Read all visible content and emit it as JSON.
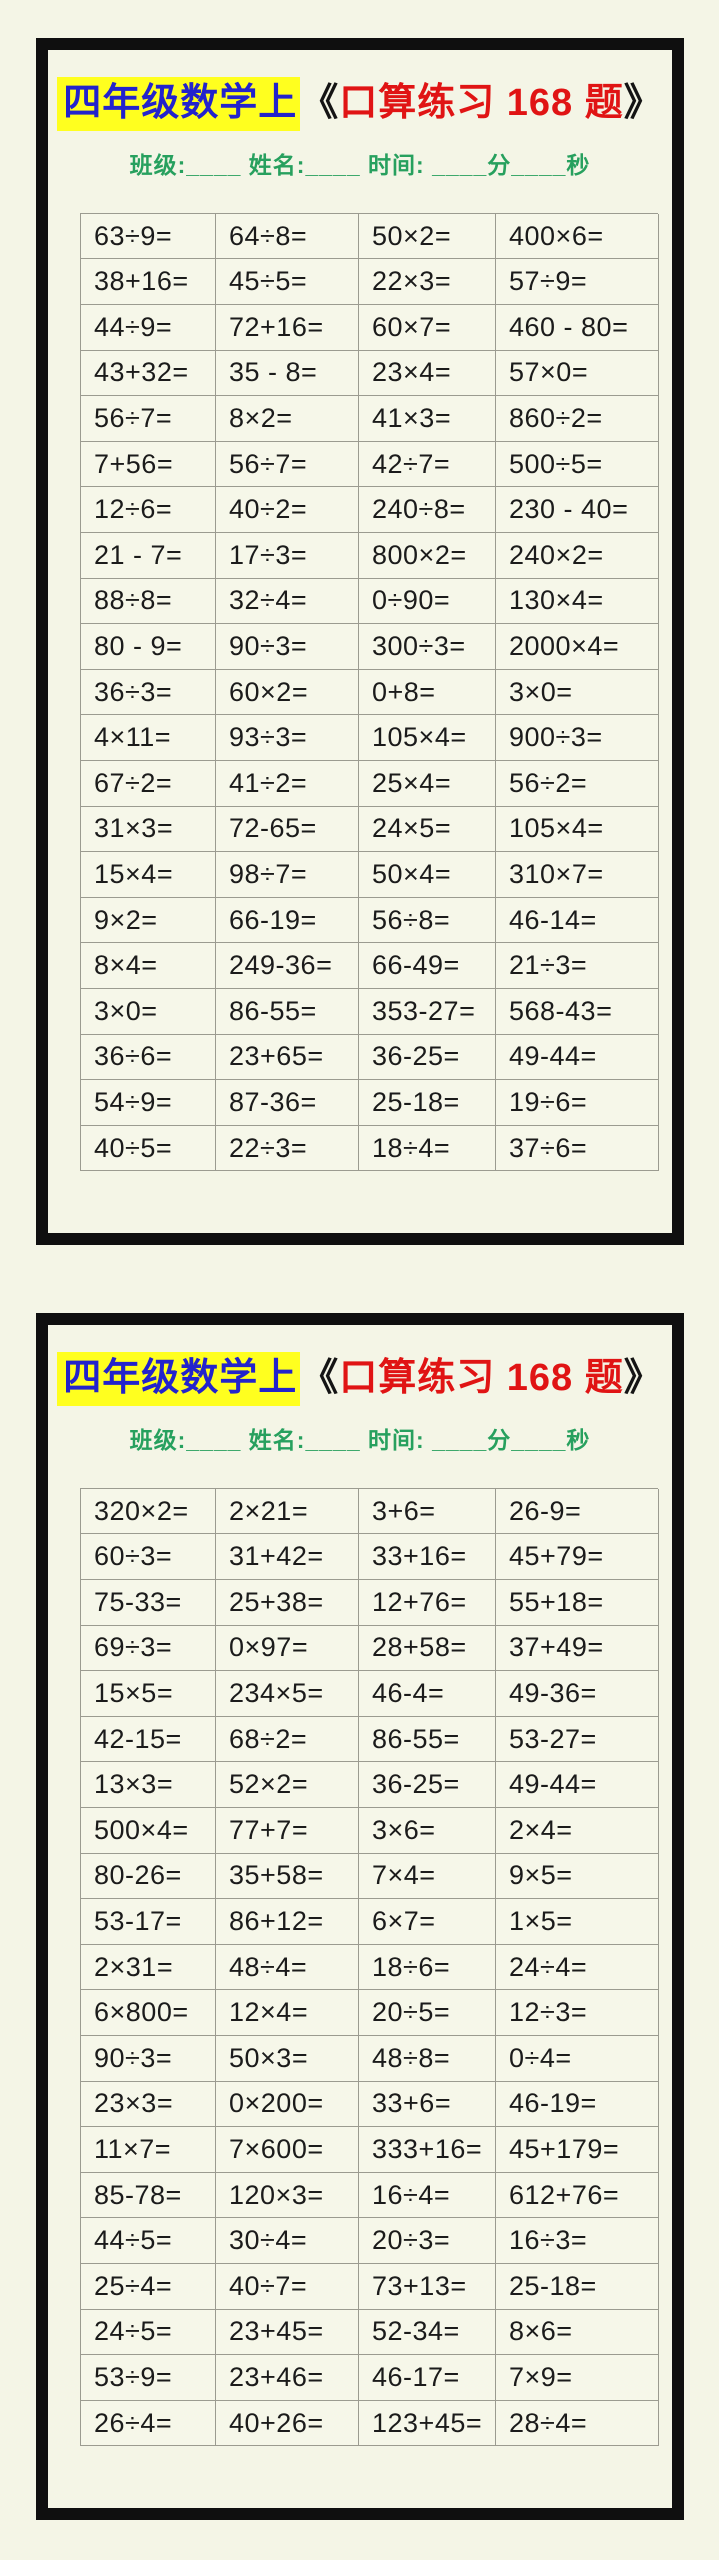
{
  "colors": {
    "page_background": "#f4f5e6",
    "card_border": "#0f0f0f",
    "title_blue": "#2323cc",
    "title_highlight_yellow": "#ffff1f",
    "title_red": "#e01414",
    "bracket_black": "#141414",
    "subtitle_green": "#27a05e",
    "grid_line_gray": "#9b9b90",
    "problem_text": "#1b1b1b"
  },
  "cards": [
    {
      "title_grade": "四年级数学上",
      "title_open": "《",
      "title_name": "口算练习 168 题",
      "title_close": "》",
      "subtitle": "班级:____ 姓名:____ 时间: ____分____秒",
      "problems": [
        [
          "63÷9=",
          "64÷8=",
          "50×2=",
          "400×6="
        ],
        [
          "38+16=",
          "45÷5=",
          "22×3=",
          "57÷9="
        ],
        [
          "44÷9=",
          "72+16=",
          "60×7=",
          "460 - 80="
        ],
        [
          "43+32=",
          "35 - 8=",
          "23×4=",
          "57×0="
        ],
        [
          "56÷7=",
          "8×2=",
          "41×3=",
          "860÷2="
        ],
        [
          "7+56=",
          "56÷7=",
          "42÷7=",
          "500÷5="
        ],
        [
          "12÷6=",
          "40÷2=",
          "240÷8=",
          "230 - 40="
        ],
        [
          "21 - 7=",
          "17÷3=",
          "800×2=",
          "240×2="
        ],
        [
          "88÷8=",
          "32÷4=",
          "0÷90=",
          "130×4="
        ],
        [
          "80 - 9=",
          "90÷3=",
          "300÷3=",
          "2000×4="
        ],
        [
          "36÷3=",
          "60×2=",
          "0+8=",
          "3×0="
        ],
        [
          "4×11=",
          "93÷3=",
          "105×4=",
          "900÷3="
        ],
        [
          "67÷2=",
          "41÷2=",
          "25×4=",
          "56÷2="
        ],
        [
          "31×3=",
          "72-65=",
          "24×5=",
          "105×4="
        ],
        [
          "15×4=",
          "98÷7=",
          "50×4=",
          "310×7="
        ],
        [
          "9×2=",
          "66-19=",
          "56÷8=",
          "46-14="
        ],
        [
          "8×4=",
          "249-36=",
          "66-49=",
          "21÷3="
        ],
        [
          "3×0=",
          "86-55=",
          "353-27=",
          "568-43="
        ],
        [
          "36÷6=",
          "23+65=",
          "36-25=",
          "49-44="
        ],
        [
          "54÷9=",
          "87-36=",
          "25-18=",
          "19÷6="
        ],
        [
          "40÷5=",
          "22÷3=",
          "18÷4=",
          "37÷6="
        ]
      ]
    },
    {
      "title_grade": "四年级数学上",
      "title_open": "《",
      "title_name": "口算练习 168 题",
      "title_close": "》",
      "subtitle": "班级:____ 姓名:____ 时间: ____分____秒",
      "problems": [
        [
          "320×2=",
          "2×21=",
          "3+6=",
          "26-9="
        ],
        [
          "60÷3=",
          "31+42=",
          "33+16=",
          "45+79="
        ],
        [
          "75-33=",
          "25+38=",
          "12+76=",
          "55+18="
        ],
        [
          "69÷3=",
          "0×97=",
          "28+58=",
          "37+49="
        ],
        [
          "15×5=",
          "234×5=",
          "46-4=",
          "49-36="
        ],
        [
          "42-15=",
          "68÷2=",
          "86-55=",
          "53-27="
        ],
        [
          "13×3=",
          "52×2=",
          "36-25=",
          "49-44="
        ],
        [
          "500×4=",
          "77+7=",
          "3×6=",
          "2×4="
        ],
        [
          "80-26=",
          "35+58=",
          "7×4=",
          "9×5="
        ],
        [
          "53-17=",
          "86+12=",
          "6×7=",
          "1×5="
        ],
        [
          "2×31=",
          "48÷4=",
          "18÷6=",
          "24÷4="
        ],
        [
          "6×800=",
          "12×4=",
          "20÷5=",
          "12÷3="
        ],
        [
          "90÷3=",
          "50×3=",
          "48÷8=",
          "0÷4="
        ],
        [
          "23×3=",
          "0×200=",
          "33+6=",
          "46-19="
        ],
        [
          "11×7=",
          "7×600=",
          "333+16=",
          "45+179="
        ],
        [
          "85-78=",
          "120×3=",
          "16÷4=",
          "612+76="
        ],
        [
          "44÷5=",
          "30÷4=",
          "20÷3=",
          "16÷3="
        ],
        [
          "25÷4=",
          "40÷7=",
          "73+13=",
          "25-18="
        ],
        [
          "24÷5=",
          "23+45=",
          "52-34=",
          "8×6="
        ],
        [
          "53÷9=",
          "23+46=",
          "46-17=",
          "7×9="
        ],
        [
          "26÷4=",
          "40+26=",
          "123+45=",
          "28÷4="
        ]
      ]
    }
  ]
}
